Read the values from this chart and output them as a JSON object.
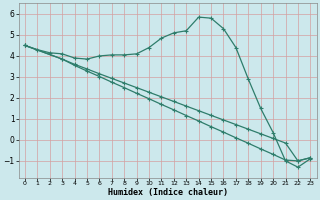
{
  "line1_x": [
    0,
    1,
    2,
    3,
    4,
    5,
    6,
    7,
    8,
    9,
    10,
    11,
    12,
    13,
    14,
    15,
    16,
    17,
    18,
    19,
    20,
    21,
    22,
    23
  ],
  "line1_y": [
    4.5,
    4.3,
    4.15,
    4.1,
    3.9,
    3.85,
    4.0,
    4.05,
    4.05,
    4.1,
    4.4,
    4.85,
    5.1,
    5.2,
    5.85,
    5.8,
    5.3,
    4.4,
    2.9,
    1.5,
    0.35,
    -1.0,
    -1.3,
    -0.9
  ],
  "line2_x": [
    0,
    3,
    4,
    5,
    6,
    7,
    8,
    9,
    10,
    11,
    12,
    13,
    14,
    15,
    16,
    17,
    18,
    19,
    20,
    21,
    22,
    23
  ],
  "line2_y": [
    4.5,
    3.85,
    3.6,
    3.38,
    3.15,
    2.93,
    2.71,
    2.49,
    2.27,
    2.05,
    1.83,
    1.61,
    1.39,
    1.17,
    0.95,
    0.73,
    0.51,
    0.29,
    0.07,
    -0.15,
    -1.0,
    -0.85
  ],
  "line3_x": [
    0,
    3,
    4,
    5,
    6,
    7,
    8,
    9,
    10,
    11,
    12,
    13,
    14,
    15,
    16,
    17,
    18,
    19,
    20,
    21,
    22,
    23
  ],
  "line3_y": [
    4.5,
    3.85,
    3.55,
    3.28,
    3.02,
    2.75,
    2.49,
    2.22,
    1.96,
    1.69,
    1.43,
    1.16,
    0.9,
    0.63,
    0.37,
    0.1,
    -0.16,
    -0.43,
    -0.69,
    -0.96,
    -1.0,
    -0.85
  ],
  "line_color": "#2E7D6B",
  "bg_color": "#cce8ec",
  "grid_color": "#e8c8c8",
  "xlabel": "Humidex (Indice chaleur)",
  "ylim": [
    -1.8,
    6.5
  ],
  "xlim": [
    -0.5,
    23.5
  ],
  "yticks": [
    -1,
    0,
    1,
    2,
    3,
    4,
    5,
    6
  ],
  "xticks": [
    0,
    1,
    2,
    3,
    4,
    5,
    6,
    7,
    8,
    9,
    10,
    11,
    12,
    13,
    14,
    15,
    16,
    17,
    18,
    19,
    20,
    21,
    22,
    23
  ]
}
